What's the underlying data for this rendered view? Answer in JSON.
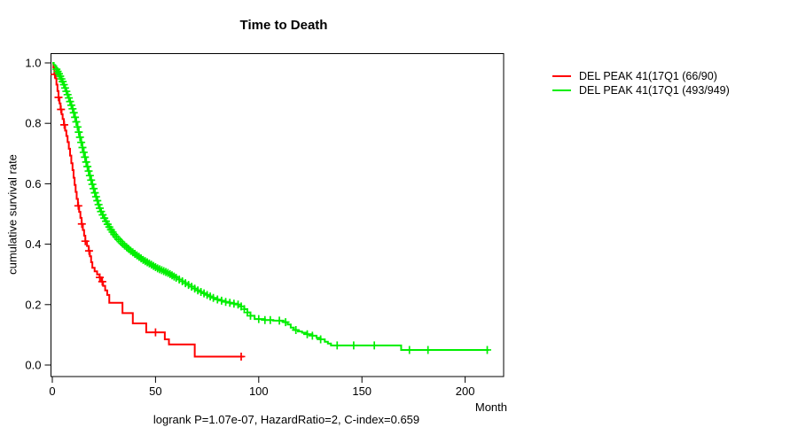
{
  "window": {
    "background": "#ffffff"
  },
  "chart_data": {
    "type": "line",
    "subtype": "kaplan-meier-step-curves",
    "title": "Time to Death",
    "xlabel": "Month",
    "ylabel": "cumulative survival rate",
    "footer": "logrank P=1.07e-07, HazardRatio=2, C-index=0.659",
    "grid": false,
    "legend_position": "right-outside",
    "xlim": [
      0,
      218
    ],
    "ylim": [
      0,
      1
    ],
    "xticks": [
      0,
      50,
      100,
      150,
      200
    ],
    "ytick_labels": [
      "0.0",
      "0.2",
      "0.4",
      "0.6",
      "0.8",
      "1.0"
    ],
    "series": [
      {
        "name": "DEL PEAK 41(17Q1 (66/90)",
        "color": "#ff0000",
        "end_month": 92.7,
        "steps": [
          [
            0,
            1.0
          ],
          [
            0.5,
            0.985
          ],
          [
            1,
            0.962
          ],
          [
            1.5,
            0.949
          ],
          [
            2,
            0.928
          ],
          [
            2.5,
            0.907
          ],
          [
            3,
            0.886
          ],
          [
            3.5,
            0.866
          ],
          [
            4,
            0.846
          ],
          [
            4.5,
            0.83
          ],
          [
            5,
            0.814
          ],
          [
            5.6,
            0.795
          ],
          [
            6.2,
            0.776
          ],
          [
            6.8,
            0.758
          ],
          [
            7.4,
            0.738
          ],
          [
            8,
            0.716
          ],
          [
            8.6,
            0.693
          ],
          [
            9.2,
            0.668
          ],
          [
            9.8,
            0.645
          ],
          [
            10.3,
            0.62
          ],
          [
            10.8,
            0.596
          ],
          [
            11.3,
            0.573
          ],
          [
            11.8,
            0.55
          ],
          [
            12.4,
            0.527
          ],
          [
            13,
            0.507
          ],
          [
            13.6,
            0.487
          ],
          [
            14.2,
            0.467
          ],
          [
            14.8,
            0.447
          ],
          [
            15.4,
            0.428
          ],
          [
            16,
            0.41
          ],
          [
            16.8,
            0.394
          ],
          [
            17.6,
            0.378
          ],
          [
            18.2,
            0.36
          ],
          [
            18.8,
            0.34
          ],
          [
            19.4,
            0.322
          ],
          [
            20.5,
            0.31
          ],
          [
            21.7,
            0.3
          ],
          [
            22.9,
            0.29
          ],
          [
            23.8,
            0.276
          ],
          [
            24.6,
            0.262
          ],
          [
            25.6,
            0.247
          ],
          [
            26.6,
            0.232
          ],
          [
            27.6,
            0.206
          ],
          [
            34,
            0.172
          ],
          [
            39,
            0.138
          ],
          [
            45.5,
            0.108
          ],
          [
            54.5,
            0.085
          ],
          [
            56.5,
            0.068
          ],
          [
            69,
            0.028
          ]
        ],
        "censor_months": [
          1.2,
          3.0,
          4.2,
          5.8,
          12.6,
          14.3,
          16.0,
          17.8,
          23.0,
          24.2,
          50,
          91.5
        ]
      },
      {
        "name": "DEL PEAK 41(17Q1 (493/949)",
        "color": "#00ee00",
        "end_month": 211.5,
        "steps": [
          [
            0,
            1.0
          ],
          [
            0.7,
            0.993
          ],
          [
            1.4,
            0.986
          ],
          [
            2,
            0.979
          ],
          [
            2.6,
            0.972
          ],
          [
            3.2,
            0.964
          ],
          [
            3.8,
            0.956
          ],
          [
            4.4,
            0.947
          ],
          [
            5,
            0.938
          ],
          [
            5.6,
            0.928
          ],
          [
            6.2,
            0.917
          ],
          [
            6.8,
            0.906
          ],
          [
            7.4,
            0.895
          ],
          [
            8,
            0.884
          ],
          [
            8.6,
            0.872
          ],
          [
            9.2,
            0.86
          ],
          [
            9.8,
            0.848
          ],
          [
            10.4,
            0.835
          ],
          [
            11,
            0.82
          ],
          [
            11.6,
            0.805
          ],
          [
            12.2,
            0.788
          ],
          [
            12.8,
            0.771
          ],
          [
            13.4,
            0.754
          ],
          [
            14,
            0.737
          ],
          [
            14.6,
            0.72
          ],
          [
            15.2,
            0.704
          ],
          [
            15.8,
            0.688
          ],
          [
            16.4,
            0.672
          ],
          [
            17,
            0.657
          ],
          [
            17.6,
            0.642
          ],
          [
            18.2,
            0.627
          ],
          [
            18.8,
            0.612
          ],
          [
            19.4,
            0.598
          ],
          [
            20,
            0.584
          ],
          [
            20.6,
            0.57
          ],
          [
            21.2,
            0.557
          ],
          [
            21.8,
            0.544
          ],
          [
            22.4,
            0.531
          ],
          [
            23,
            0.519
          ],
          [
            23.6,
            0.508
          ],
          [
            24.4,
            0.497
          ],
          [
            25.2,
            0.486
          ],
          [
            26,
            0.476
          ],
          [
            26.8,
            0.466
          ],
          [
            27.6,
            0.457
          ],
          [
            28.4,
            0.448
          ],
          [
            29.2,
            0.44
          ],
          [
            30,
            0.432
          ],
          [
            31,
            0.424
          ],
          [
            32,
            0.416
          ],
          [
            33,
            0.409
          ],
          [
            34,
            0.402
          ],
          [
            35,
            0.396
          ],
          [
            36,
            0.39
          ],
          [
            37,
            0.384
          ],
          [
            38,
            0.378
          ],
          [
            39,
            0.373
          ],
          [
            40,
            0.368
          ],
          [
            41,
            0.363
          ],
          [
            42,
            0.358
          ],
          [
            43,
            0.353
          ],
          [
            44,
            0.348
          ],
          [
            45,
            0.344
          ],
          [
            46,
            0.34
          ],
          [
            47,
            0.336
          ],
          [
            48,
            0.332
          ],
          [
            49,
            0.328
          ],
          [
            50,
            0.324
          ],
          [
            51,
            0.32
          ],
          [
            52,
            0.317
          ],
          [
            53,
            0.314
          ],
          [
            54,
            0.311
          ],
          [
            55,
            0.308
          ],
          [
            56,
            0.305
          ],
          [
            57,
            0.301
          ],
          [
            58,
            0.297
          ],
          [
            59,
            0.293
          ],
          [
            60,
            0.289
          ],
          [
            61.5,
            0.283
          ],
          [
            63,
            0.277
          ],
          [
            64.5,
            0.271
          ],
          [
            66,
            0.265
          ],
          [
            67.5,
            0.259
          ],
          [
            69,
            0.253
          ],
          [
            70.5,
            0.247
          ],
          [
            72,
            0.242
          ],
          [
            73.5,
            0.237
          ],
          [
            75,
            0.232
          ],
          [
            76.5,
            0.227
          ],
          [
            78,
            0.222
          ],
          [
            80,
            0.217
          ],
          [
            82,
            0.213
          ],
          [
            84,
            0.209
          ],
          [
            86,
            0.206
          ],
          [
            88,
            0.203
          ],
          [
            90,
            0.2
          ],
          [
            91.5,
            0.194
          ],
          [
            93,
            0.185
          ],
          [
            94.5,
            0.174
          ],
          [
            96,
            0.163
          ],
          [
            98,
            0.152
          ],
          [
            103,
            0.149
          ],
          [
            107,
            0.147
          ],
          [
            112,
            0.142
          ],
          [
            114,
            0.134
          ],
          [
            115.5,
            0.124
          ],
          [
            117,
            0.116
          ],
          [
            119,
            0.111
          ],
          [
            121,
            0.107
          ],
          [
            123.5,
            0.102
          ],
          [
            126,
            0.097
          ],
          [
            128,
            0.09
          ],
          [
            130,
            0.085
          ],
          [
            132,
            0.077
          ],
          [
            133.5,
            0.071
          ],
          [
            135,
            0.065
          ],
          [
            169,
            0.05
          ]
        ],
        "censor_months": [
          2,
          2.6,
          3.2,
          3.8,
          4.4,
          5,
          5.6,
          6.2,
          6.8,
          7.4,
          8,
          8.6,
          9.2,
          9.8,
          10.4,
          11,
          11.6,
          12.2,
          12.8,
          13.4,
          14,
          14.6,
          15.2,
          15.8,
          16.4,
          17,
          17.6,
          18.2,
          18.8,
          19.4,
          20,
          20.6,
          21.2,
          21.8,
          22.4,
          23,
          23.6,
          24.4,
          25.2,
          26,
          26.8,
          27.6,
          28.4,
          29.2,
          30,
          31,
          32,
          33,
          34,
          35,
          36,
          37,
          38,
          39,
          40,
          41,
          42,
          43,
          44,
          45,
          46,
          47,
          48,
          49,
          50,
          51,
          52,
          53,
          54,
          55,
          56,
          57,
          58,
          59,
          60,
          61.5,
          63,
          64.5,
          66,
          67.5,
          69,
          70.5,
          72,
          73.5,
          75,
          76.5,
          78,
          80,
          82,
          84,
          86,
          88,
          90,
          91.5,
          93,
          94.5,
          96,
          100,
          103,
          105.6,
          110,
          113,
          118,
          123.5,
          126,
          130,
          138,
          146,
          156,
          173,
          182,
          210.7
        ]
      }
    ]
  }
}
